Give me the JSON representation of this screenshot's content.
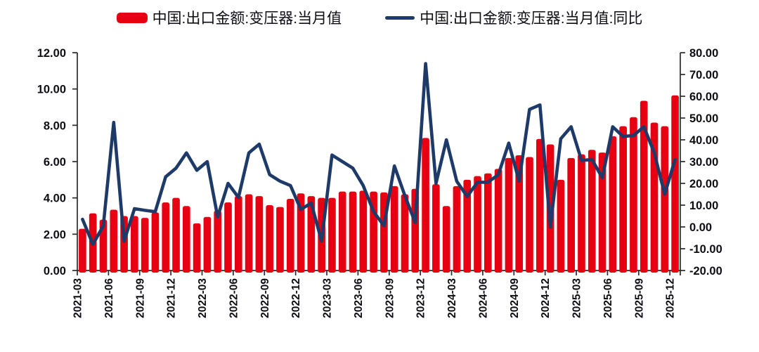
{
  "colors": {
    "bar": "#e60012",
    "line": "#1d3a68",
    "text": "#0d0d14",
    "axis": "#2b2b2b",
    "background": "#ffffff"
  },
  "legend": [
    {
      "label": "中国:出口金额:变压器:当月值",
      "type": "bar",
      "color": "#e60012"
    },
    {
      "label": "中国:出口金额:变压器:当月值:同比",
      "type": "line",
      "color": "#1d3a68"
    }
  ],
  "chart_data": {
    "type": "bar",
    "subtype": "combo-bar-line",
    "title": "",
    "grid": false,
    "legend_position": "top",
    "categories": [
      "2021-03",
      "2021-04",
      "2021-05",
      "2021-06",
      "2021-07",
      "2021-08",
      "2021-09",
      "2021-10",
      "2021-11",
      "2021-12",
      "2022-01",
      "2022-02",
      "2022-03",
      "2022-04",
      "2022-05",
      "2022-06",
      "2022-07",
      "2022-08",
      "2022-09",
      "2022-10",
      "2022-11",
      "2022-12",
      "2023-01",
      "2023-02",
      "2023-03",
      "2023-04",
      "2023-05",
      "2023-06",
      "2023-07",
      "2023-08",
      "2023-09",
      "2023-10",
      "2023-11",
      "2023-12",
      "2024-01",
      "2024-02",
      "2024-03",
      "2024-04",
      "2024-05",
      "2024-06",
      "2024-07",
      "2024-08",
      "2024-09",
      "2024-10",
      "2024-11",
      "2024-12",
      "2025-01",
      "2025-02",
      "2025-03",
      "2025-04",
      "2025-05",
      "2025-06",
      "2025-07",
      "2025-08",
      "2025-09",
      "2025-10",
      "2025-11",
      "2025-12"
    ],
    "series": [
      {
        "name": "中国:出口金额:变压器:当月值",
        "type": "bar",
        "axis": "left",
        "color": "#e60012",
        "values": [
          2.3,
          3.15,
          2.8,
          3.35,
          3.0,
          3.0,
          2.9,
          3.2,
          3.75,
          4.0,
          3.55,
          2.6,
          2.95,
          3.3,
          3.75,
          4.1,
          4.2,
          4.1,
          3.6,
          3.5,
          3.95,
          4.25,
          4.1,
          4.0,
          4.0,
          4.35,
          4.35,
          4.4,
          4.35,
          4.3,
          4.65,
          4.2,
          4.5,
          7.3,
          4.75,
          3.55,
          4.65,
          5.0,
          5.2,
          5.35,
          5.6,
          6.2,
          6.35,
          6.25,
          7.25,
          6.95,
          5.0,
          6.2,
          6.4,
          6.65,
          6.5,
          7.4,
          7.95,
          8.45,
          9.35,
          8.15,
          7.95,
          9.65
        ]
      },
      {
        "name": "中国:出口金额:变压器:当月值:同比",
        "type": "line",
        "axis": "right",
        "color": "#1d3a68",
        "values": [
          3.5,
          -8.0,
          0.5,
          48.0,
          -6.5,
          8.4,
          7.6,
          7.0,
          23.0,
          27.0,
          34.0,
          26.0,
          30.0,
          4.6,
          20.0,
          13.5,
          34.0,
          38.0,
          24.0,
          21.0,
          19.0,
          8.0,
          11.0,
          -6.5,
          33.0,
          30.0,
          27.0,
          19.0,
          7.0,
          0.5,
          28.0,
          14.5,
          2.0,
          75.0,
          20.0,
          40.0,
          21.0,
          14.0,
          20.5,
          20.5,
          24.0,
          38.5,
          21.0,
          54.0,
          56.0,
          0.0,
          40.5,
          46.0,
          30.5,
          31.0,
          22.5,
          46.0,
          41.5,
          42.0,
          46.0,
          34.0,
          15.0,
          31.0
        ]
      }
    ],
    "left_axis": {
      "min": 0,
      "max": 12,
      "tick_step": 2,
      "tick_labels": [
        "0.00",
        "2.00",
        "4.00",
        "6.00",
        "8.00",
        "10.00",
        "12.00"
      ]
    },
    "right_axis": {
      "min": -20,
      "max": 80,
      "tick_step": 10,
      "tick_labels": [
        "-20.00",
        "-10.00",
        "0.00",
        "10.00",
        "20.00",
        "30.00",
        "40.00",
        "50.00",
        "60.00",
        "70.00",
        "80.00"
      ]
    },
    "x_axis": {
      "tick_every": 3,
      "tick_labels": [
        "2021-03",
        "2021-06",
        "2021-09",
        "2021-12",
        "2022-03",
        "2022-06",
        "2022-09",
        "2022-12",
        "2023-03",
        "2023-06",
        "2023-09",
        "2023-12",
        "2024-03",
        "2024-06",
        "2024-09",
        "2024-12",
        "2025-03",
        "2025-06",
        "2025-09",
        "2025-12"
      ]
    }
  }
}
